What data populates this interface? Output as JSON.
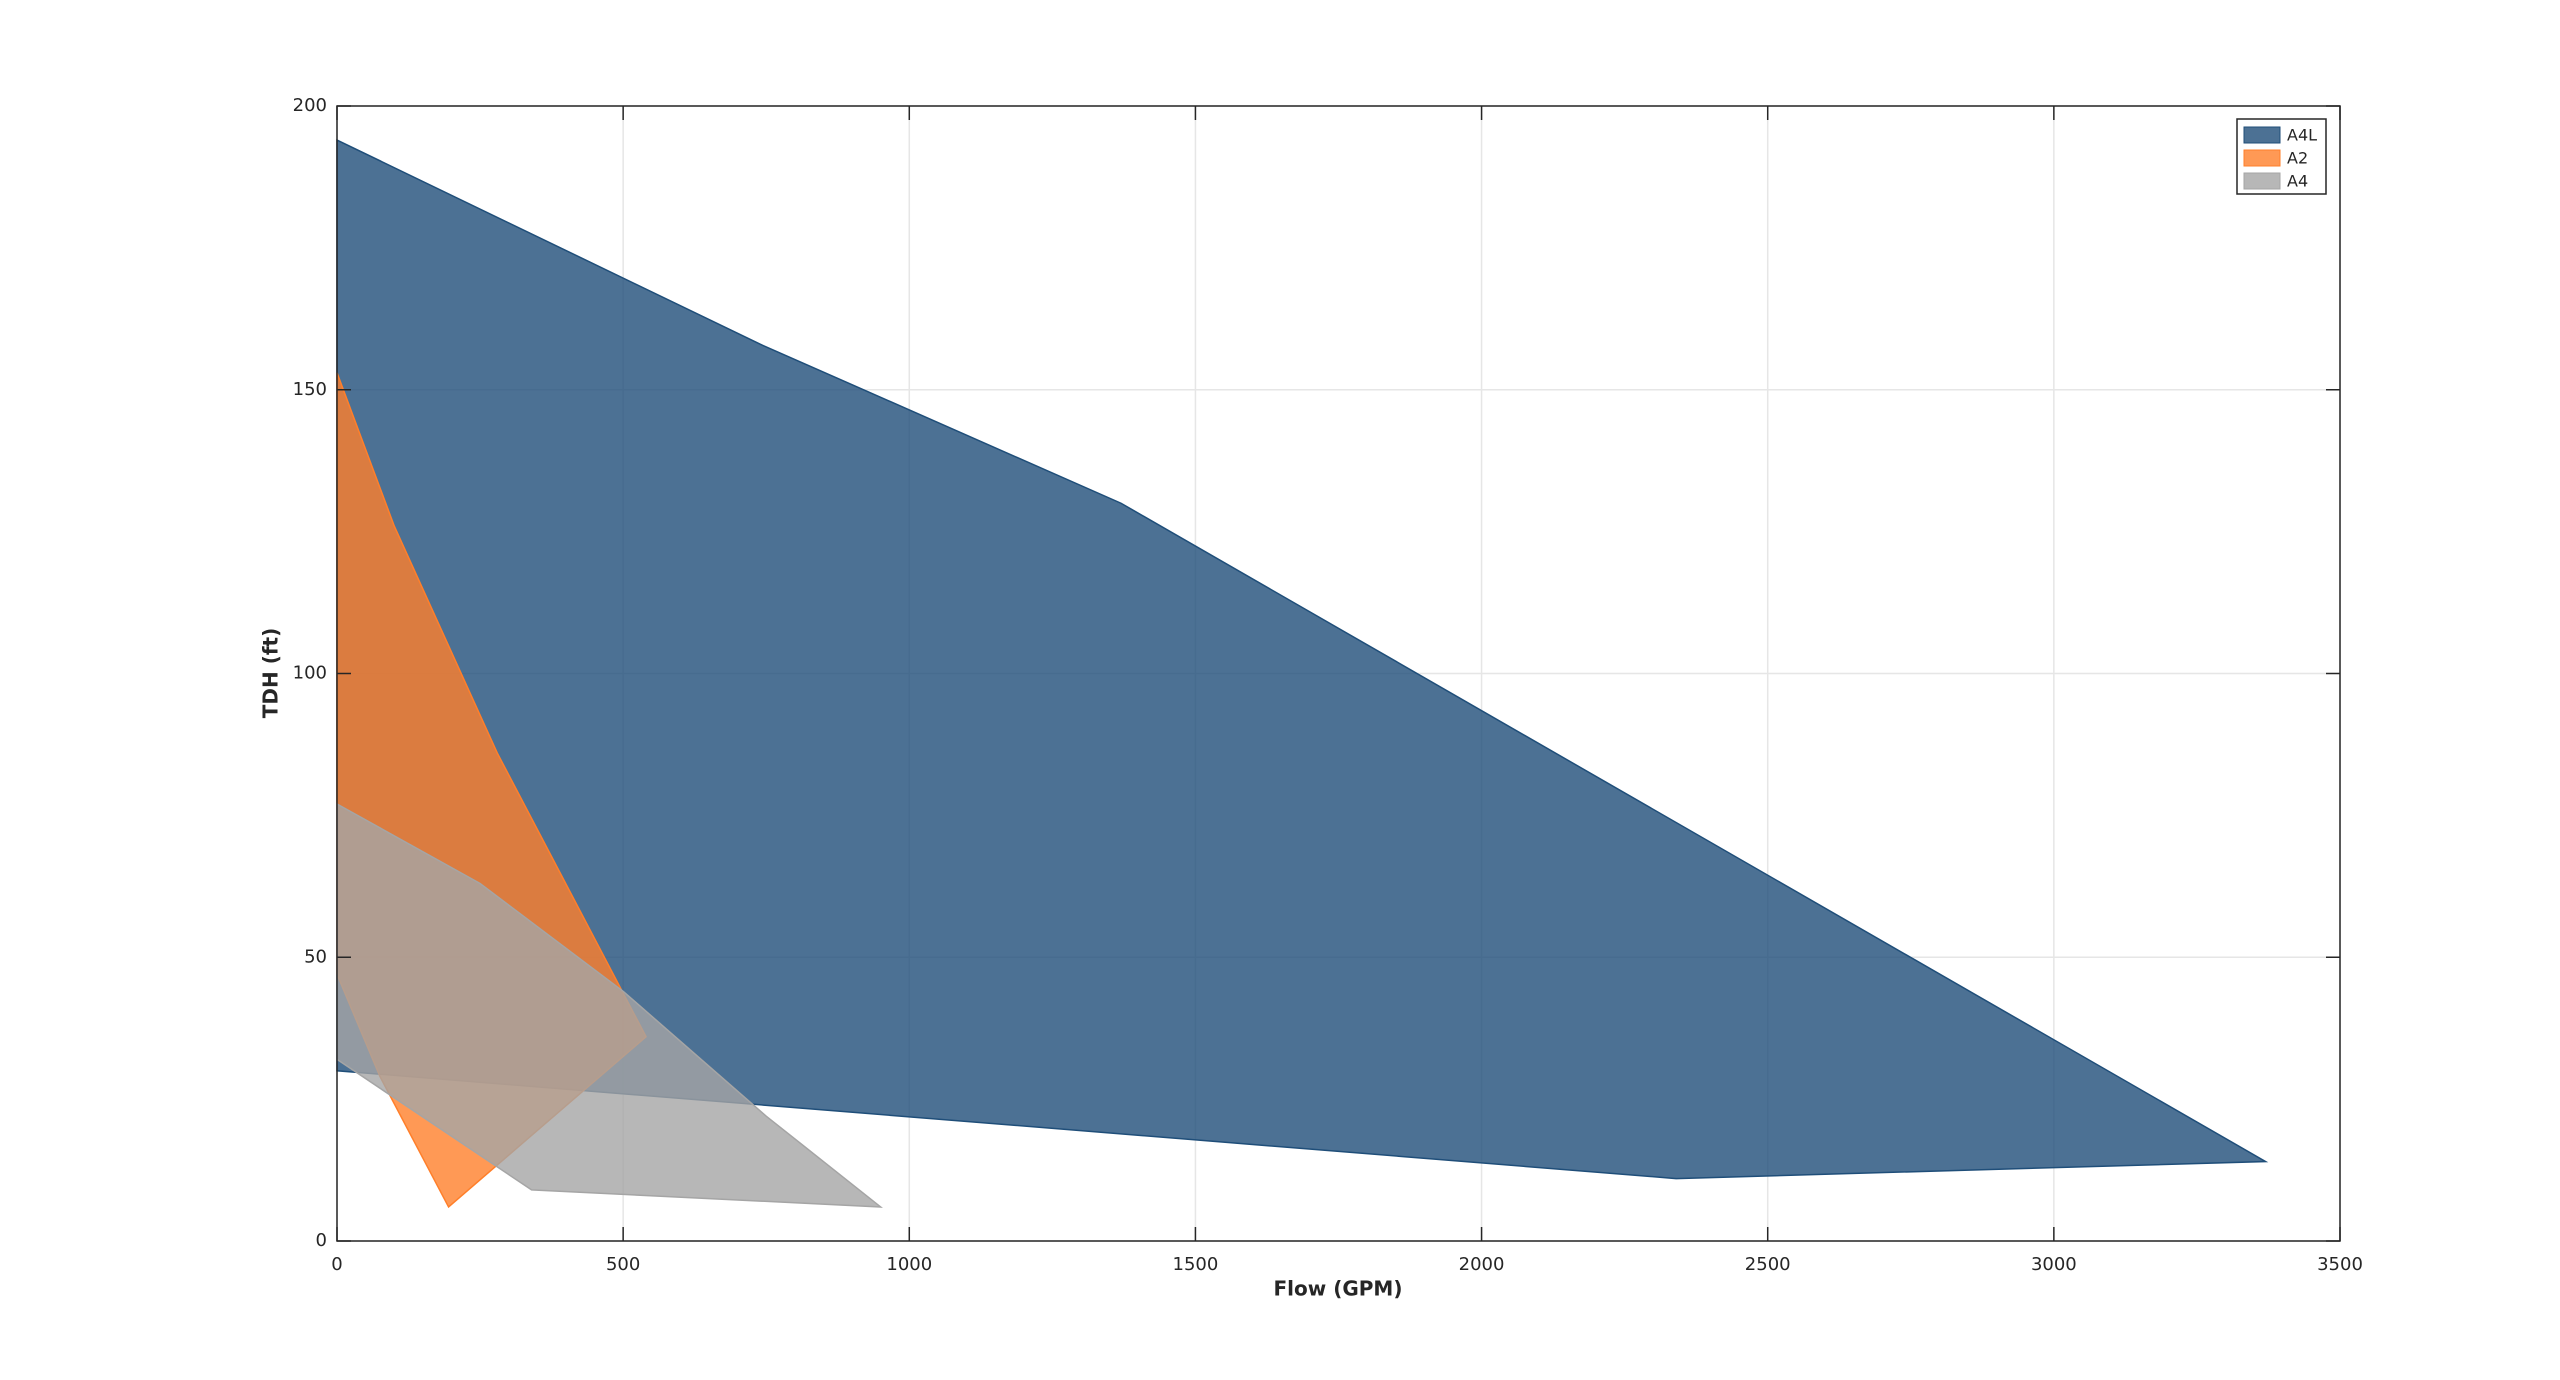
{
  "chart_data": {
    "type": "area",
    "xlabel": "Flow (GPM)",
    "ylabel": "TDH (ft)",
    "xlim": [
      0,
      3500
    ],
    "xticks": [
      0,
      500,
      1000,
      1500,
      2000,
      2500,
      3000,
      3500
    ],
    "ylim": [
      0,
      200
    ],
    "yticks": [
      0,
      50,
      100,
      150,
      200
    ],
    "grid": true,
    "legend": "upper right",
    "series": [
      {
        "name": "A4L",
        "color": "#1f4e79",
        "x": [
          0,
          740,
          1370,
          3370,
          2340,
          0
        ],
        "values": [
          194,
          158,
          130,
          14,
          11,
          30
        ]
      },
      {
        "name": "A2",
        "color": "#ff7f2a",
        "x": [
          0,
          100,
          280,
          540,
          195,
          75,
          0
        ],
        "values": [
          153,
          126,
          86,
          36,
          6,
          29,
          47
        ]
      },
      {
        "name": "A4",
        "color": "#a5a5a5",
        "x": [
          0,
          250,
          500,
          750,
          950,
          340,
          0
        ],
        "values": [
          77,
          63,
          44,
          22,
          6,
          9,
          32
        ]
      }
    ]
  }
}
